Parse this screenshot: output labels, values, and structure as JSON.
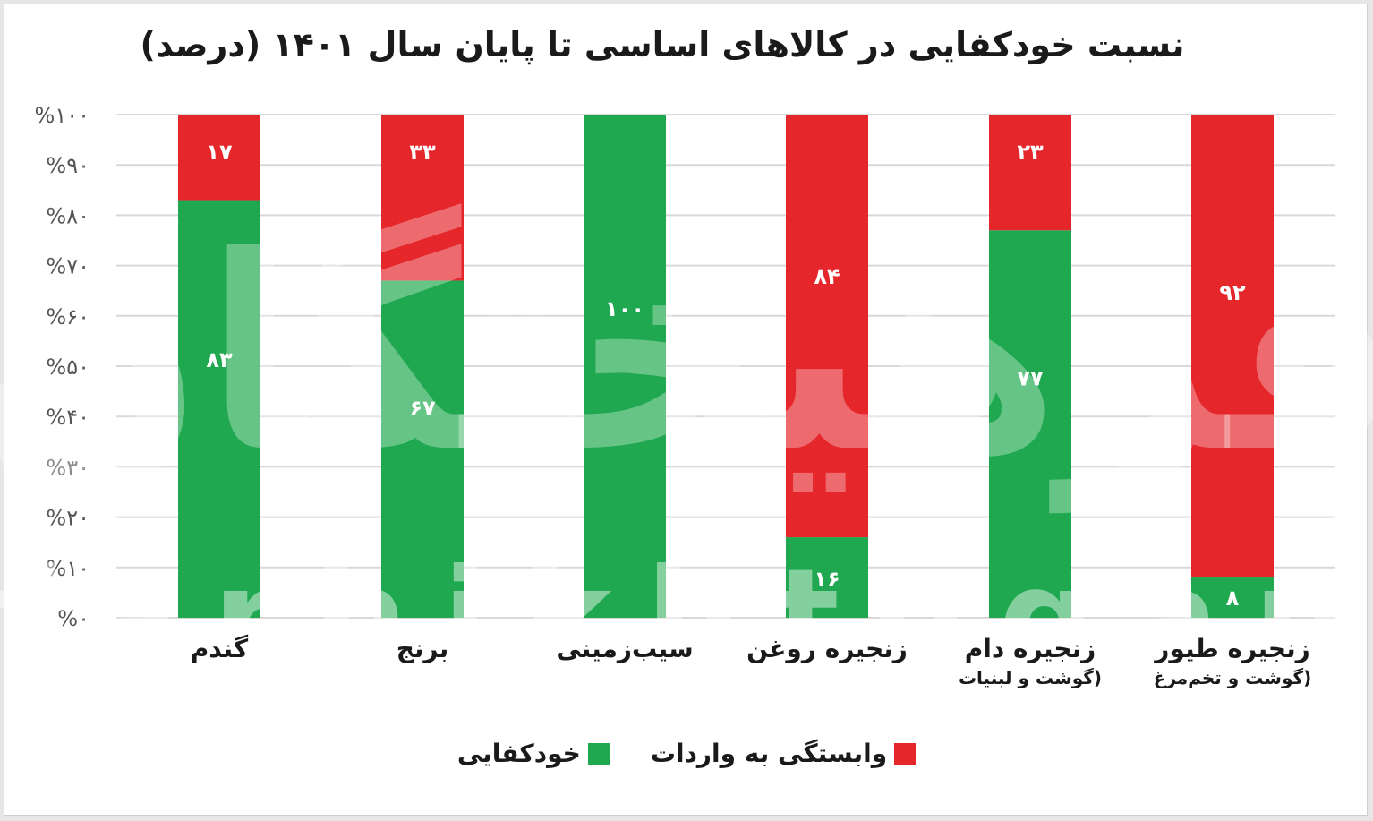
{
  "title": "نسبت خودکفایی در کالاهای اساسی تا پایان سال ۱۴۰۱ (درصد)",
  "watermark": {
    "big": "فرهیختگان",
    "small": "farhikhtegan"
  },
  "colors": {
    "self_sufficiency": "#1fa84f",
    "import_dependency": "#e5262b",
    "grid": "#d9d9d9"
  },
  "legend": [
    {
      "label": "وابستگی به واردات",
      "color": "#e5262b"
    },
    {
      "label": "خودکفایی",
      "color": "#1fa84f"
    }
  ],
  "categories_display": [
    {
      "main": "گندم",
      "sub": ""
    },
    {
      "main": "برنج",
      "sub": ""
    },
    {
      "main": "سیب‌زمینی",
      "sub": ""
    },
    {
      "main": "زنجیره روغن",
      "sub": ""
    },
    {
      "main": "زنجیره دام",
      "sub": "(گوشت و لبنیات"
    },
    {
      "main": "زنجیره طیور",
      "sub": "(گوشت و تخم‌مرغ"
    }
  ],
  "chart_data": {
    "type": "bar",
    "stacked": true,
    "title": "نسبت خودکفایی در کالاهای اساسی تا پایان سال ۱۴۰۱ (درصد)",
    "categories": [
      "گندم",
      "برنج",
      "سیب‌زمینی",
      "زنجیره روغن",
      "زنجیره دام (گوشت و لبنیات",
      "زنجیره طیور (گوشت و تخم‌مرغ"
    ],
    "series": [
      {
        "name": "خودکفایی",
        "values": [
          83,
          67,
          100,
          16,
          77,
          8
        ],
        "labels": [
          "۸۳",
          "۶۷",
          "۱۰۰",
          "۱۶",
          "۷۷",
          "۸"
        ]
      },
      {
        "name": "وابستگی به واردات",
        "values": [
          17,
          33,
          0,
          84,
          23,
          92
        ],
        "labels": [
          "۱۷",
          "۳۳",
          "",
          "۸۴",
          "۲۳",
          "۹۲"
        ]
      }
    ],
    "ylim": [
      0,
      100
    ],
    "yticks": [
      "%۰",
      "%۱۰",
      "%۲۰",
      "%۳۰",
      "%۴۰",
      "%۵۰",
      "%۶۰",
      "%۷۰",
      "%۸۰",
      "%۹۰",
      "%۱۰۰"
    ],
    "grid": true,
    "legend_position": "bottom"
  }
}
